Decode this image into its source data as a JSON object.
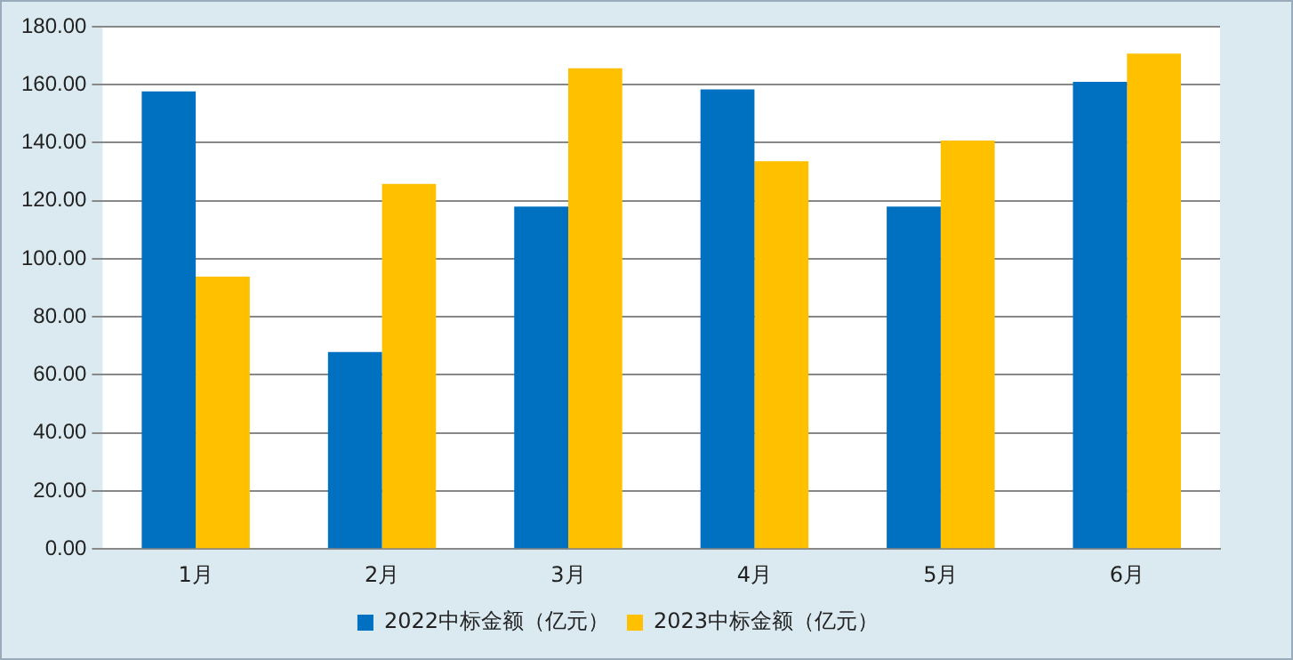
{
  "chart_data": {
    "type": "bar",
    "categories": [
      "1月",
      "2月",
      "3月",
      "4月",
      "5月",
      "6月"
    ],
    "series": [
      {
        "name": "2022中标金额（亿元）",
        "color": "#0070c0",
        "values": [
          157.7,
          67.9,
          118,
          158.4,
          118,
          161
        ]
      },
      {
        "name": "2023中标金额（亿元）",
        "color": "#ffc000",
        "values": [
          93.9,
          125.8,
          165.7,
          133.6,
          140.8,
          170.7
        ]
      }
    ],
    "ylim": [
      0,
      180
    ],
    "yticks": [
      {
        "value": 0,
        "label": "0.00"
      },
      {
        "value": 20,
        "label": "20.00"
      },
      {
        "value": 40,
        "label": "40.00"
      },
      {
        "value": 60,
        "label": "60.00"
      },
      {
        "value": 80,
        "label": "80.00"
      },
      {
        "value": 100,
        "label": "100.00"
      },
      {
        "value": 120,
        "label": "120.00"
      },
      {
        "value": 140,
        "label": "140.00"
      },
      {
        "value": 160,
        "label": "160.00"
      },
      {
        "value": 180,
        "label": "180.00"
      }
    ],
    "grid": "y",
    "legend": "bottom"
  }
}
